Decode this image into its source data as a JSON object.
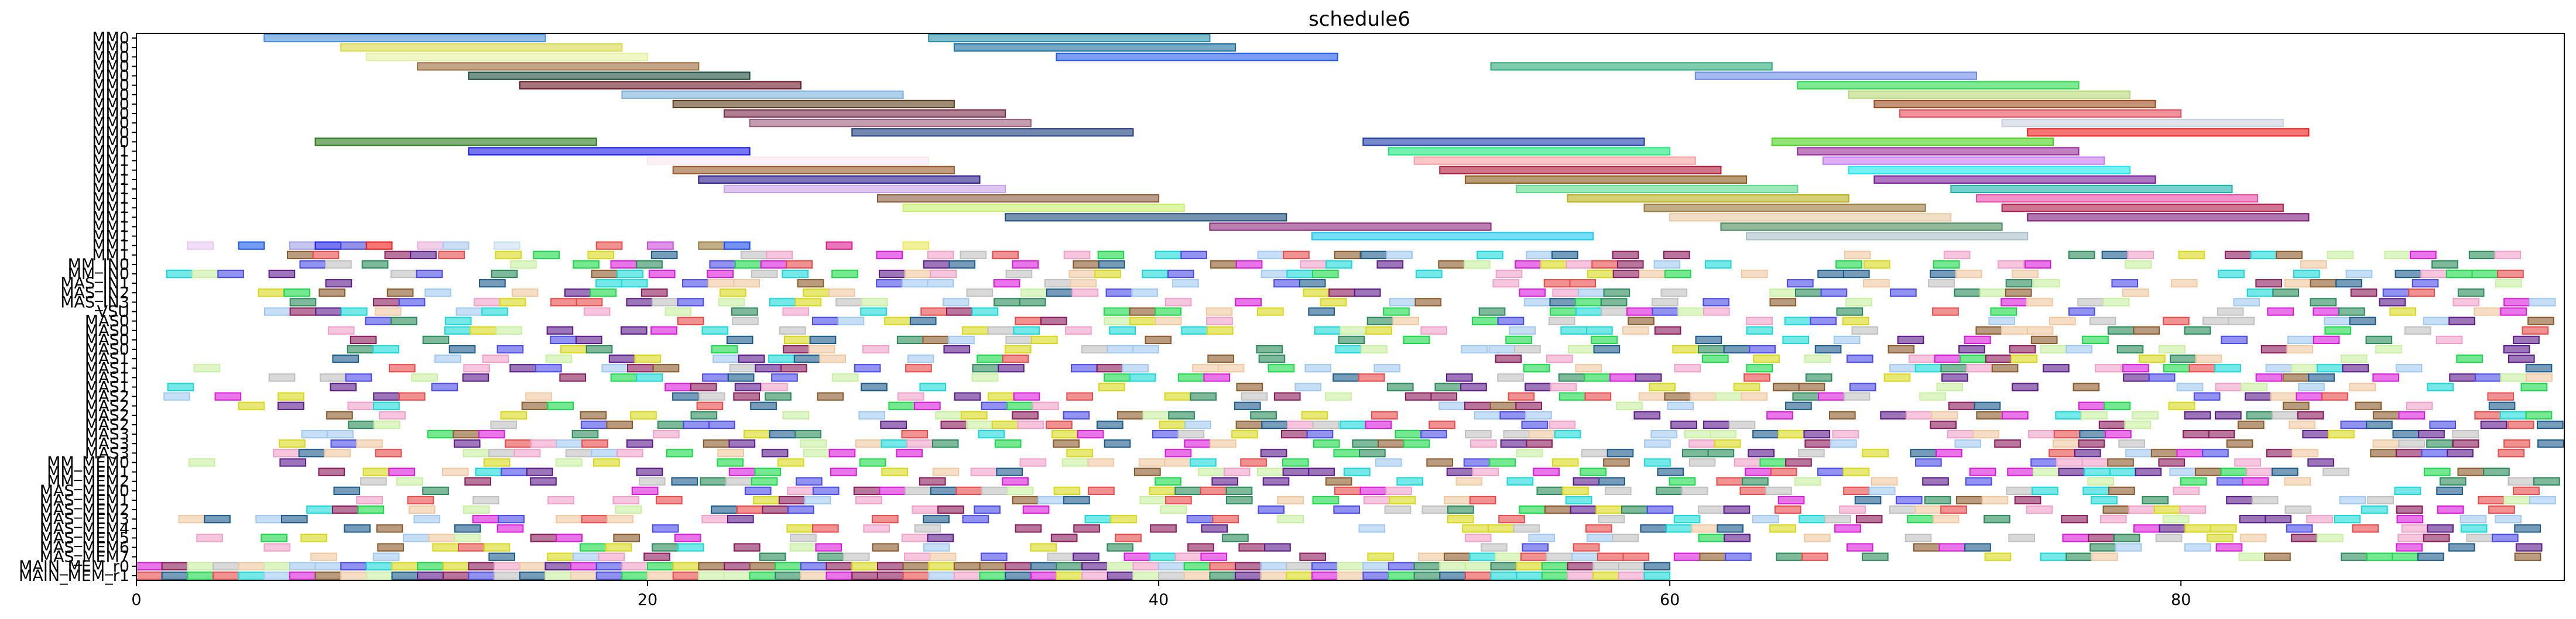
{
  "chart_data": {
    "type": "gantt",
    "title": "schedule6",
    "xlabel": "",
    "ylabel": "",
    "xlim": [
      0,
      95
    ],
    "x_ticks": [
      0,
      20,
      40,
      60,
      80
    ],
    "x_tick_labels": [
      "0",
      "20",
      "40",
      "60",
      "80"
    ],
    "grid": false,
    "legend": "none",
    "rows": [
      "MM0",
      "MM0",
      "MM0",
      "MM0",
      "MM0",
      "MM0",
      "MM0",
      "MM0",
      "MM0",
      "MM0",
      "MM0",
      "MM0",
      "MM1",
      "MM1",
      "MM1",
      "MM1",
      "MM1",
      "MM1",
      "MM1",
      "MM1",
      "MM1",
      "MM1",
      "MM1",
      "MM1",
      "MM_IN0",
      "MM_IN0",
      "MAS_IN1",
      "MAS_IN2",
      "MAS_IN3",
      "VSU",
      "MAS0",
      "MAS0",
      "MAS0",
      "MAS0",
      "MAS1",
      "MAS1",
      "MAS1",
      "MAS1",
      "MAS2",
      "MAS2",
      "MAS2",
      "MAS2",
      "MAS3",
      "MAS3",
      "MAS3",
      "MM_MEM0",
      "MM_MEM1",
      "MM_MEM2",
      "MAS_MEM0",
      "MAS_MEM1",
      "MAS_MEM2",
      "MAS_MEM3",
      "MAS_MEM4",
      "MAS_MEM5",
      "MAS_MEM6",
      "MAS_MEM7",
      "MAIN_MEM_r0",
      "MAIN_MEM_r1"
    ],
    "tasks": [
      {
        "row": 0,
        "start": 5,
        "end": 16,
        "color": "#4a90d9"
      },
      {
        "row": 0,
        "start": 31,
        "end": 42,
        "color": "#2a8fa8"
      },
      {
        "row": 1,
        "start": 8,
        "end": 19,
        "color": "#d8d84a"
      },
      {
        "row": 1,
        "start": 32,
        "end": 43,
        "color": "#1a6fa0"
      },
      {
        "row": 2,
        "start": 9,
        "end": 20,
        "color": "#e8f0a0"
      },
      {
        "row": 2,
        "start": 36,
        "end": 47,
        "color": "#1f5ae8"
      },
      {
        "row": 3,
        "start": 11,
        "end": 22,
        "color": "#9b6b3a"
      },
      {
        "row": 3,
        "start": 53,
        "end": 64,
        "color": "#2aa878"
      },
      {
        "row": 4,
        "start": 13,
        "end": 24,
        "color": "#1a4a3a"
      },
      {
        "row": 4,
        "start": 61,
        "end": 72,
        "color": "#6a8ae8"
      },
      {
        "row": 5,
        "start": 15,
        "end": 26,
        "color": "#6a1a2a"
      },
      {
        "row": 5,
        "start": 65,
        "end": 76,
        "color": "#2ad84a"
      },
      {
        "row": 6,
        "start": 19,
        "end": 30,
        "color": "#7ab0d8"
      },
      {
        "row": 6,
        "start": 67,
        "end": 78,
        "color": "#b8d878"
      },
      {
        "row": 7,
        "start": 21,
        "end": 32,
        "color": "#5a3a1a"
      },
      {
        "row": 7,
        "start": 68,
        "end": 79,
        "color": "#9b4a1a"
      },
      {
        "row": 8,
        "start": 23,
        "end": 34,
        "color": "#7a2a4a"
      },
      {
        "row": 8,
        "start": 69,
        "end": 80,
        "color": "#e84a5a"
      },
      {
        "row": 9,
        "start": 24,
        "end": 35,
        "color": "#9a5a7a"
      },
      {
        "row": 9,
        "start": 73,
        "end": 84,
        "color": "#c8d0e0"
      },
      {
        "row": 10,
        "start": 28,
        "end": 39,
        "color": "#1a3a7a"
      },
      {
        "row": 10,
        "start": 74,
        "end": 85,
        "color": "#f01a1a"
      },
      {
        "row": 11,
        "start": 7,
        "end": 18,
        "color": "#2a7a1a"
      },
      {
        "row": 11,
        "start": 48,
        "end": 59,
        "color": "#1a3aa8"
      },
      {
        "row": 11,
        "start": 64,
        "end": 75,
        "color": "#4ad01a"
      },
      {
        "row": 12,
        "start": 13,
        "end": 24,
        "color": "#1a1ae8"
      },
      {
        "row": 12,
        "start": 49,
        "end": 60,
        "color": "#1ae87a"
      },
      {
        "row": 12,
        "start": 65,
        "end": 76,
        "color": "#9a2a9a"
      },
      {
        "row": 13,
        "start": 20,
        "end": 31,
        "color": "#f8e8f0"
      },
      {
        "row": 13,
        "start": 50,
        "end": 61,
        "color": "#f8a0a0"
      },
      {
        "row": 13,
        "start": 66,
        "end": 77,
        "color": "#c87af0"
      },
      {
        "row": 14,
        "start": 21,
        "end": 32,
        "color": "#9a5a2a"
      },
      {
        "row": 14,
        "start": 51,
        "end": 62,
        "color": "#b01a3a"
      },
      {
        "row": 14,
        "start": 67,
        "end": 78,
        "color": "#1ae8f0"
      },
      {
        "row": 15,
        "start": 22,
        "end": 33,
        "color": "#2a1a8a"
      },
      {
        "row": 15,
        "start": 52,
        "end": 63,
        "color": "#8a5a1a"
      },
      {
        "row": 15,
        "start": 68,
        "end": 79,
        "color": "#7a1a9a"
      },
      {
        "row": 16,
        "start": 23,
        "end": 34,
        "color": "#c8a0e8"
      },
      {
        "row": 16,
        "start": 54,
        "end": 65,
        "color": "#5ad88a"
      },
      {
        "row": 16,
        "start": 71,
        "end": 82,
        "color": "#1ab0a8"
      },
      {
        "row": 17,
        "start": 29,
        "end": 40,
        "color": "#8a5a3a"
      },
      {
        "row": 17,
        "start": 56,
        "end": 67,
        "color": "#b8b01a"
      },
      {
        "row": 17,
        "start": 72,
        "end": 83,
        "color": "#e84aa8"
      },
      {
        "row": 18,
        "start": 30,
        "end": 41,
        "color": "#c8f06a"
      },
      {
        "row": 18,
        "start": 59,
        "end": 70,
        "color": "#9a7a3a"
      },
      {
        "row": 18,
        "start": 73,
        "end": 84,
        "color": "#b01a4a"
      },
      {
        "row": 19,
        "start": 34,
        "end": 45,
        "color": "#1a4a7a"
      },
      {
        "row": 19,
        "start": 60,
        "end": 71,
        "color": "#e8c8a0"
      },
      {
        "row": 19,
        "start": 74,
        "end": 85,
        "color": "#7a1a7a"
      },
      {
        "row": 20,
        "start": 42,
        "end": 53,
        "color": "#8a2a7a"
      },
      {
        "row": 20,
        "start": 62,
        "end": 73,
        "color": "#4a8a5a"
      },
      {
        "row": 21,
        "start": 46,
        "end": 57,
        "color": "#1ac8f0"
      },
      {
        "row": 21,
        "start": 63,
        "end": 74,
        "color": "#a8c0c8"
      },
      {
        "row": 22,
        "start": 2,
        "end": 3,
        "color": "#e8c8f0"
      },
      {
        "row": 22,
        "start": 4,
        "end": 5,
        "color": "#1a5ae8"
      },
      {
        "row": 22,
        "start": 6,
        "end": 7,
        "color": "#a0a0e8"
      },
      {
        "row": 22,
        "start": 7,
        "end": 8,
        "color": "#1a1ae8"
      },
      {
        "row": 22,
        "start": 8,
        "end": 9,
        "color": "#4a4ad8"
      },
      {
        "row": 22,
        "start": 9,
        "end": 10,
        "color": "#f01a1a"
      },
      {
        "row": 22,
        "start": 11,
        "end": 12,
        "color": "#e8b0d8"
      },
      {
        "row": 22,
        "start": 12,
        "end": 13,
        "color": "#a8c8f0"
      },
      {
        "row": 22,
        "start": 14,
        "end": 15,
        "color": "#c8e0f0"
      },
      {
        "row": 22,
        "start": 18,
        "end": 19,
        "color": "#e84a4a"
      },
      {
        "row": 22,
        "start": 20,
        "end": 21,
        "color": "#c84ad8"
      },
      {
        "row": 22,
        "start": 22,
        "end": 23,
        "color": "#9a7a3a"
      },
      {
        "row": 22,
        "start": 23,
        "end": 24,
        "color": "#1a4ae8"
      },
      {
        "row": 22,
        "start": 27,
        "end": 28,
        "color": "#d81a8a"
      },
      {
        "row": 22,
        "start": 30,
        "end": 31,
        "color": "#e8e85a"
      }
    ],
    "random_fill": {
      "description": "dense short task blocks across rows 22-57",
      "seed": 6
    }
  }
}
